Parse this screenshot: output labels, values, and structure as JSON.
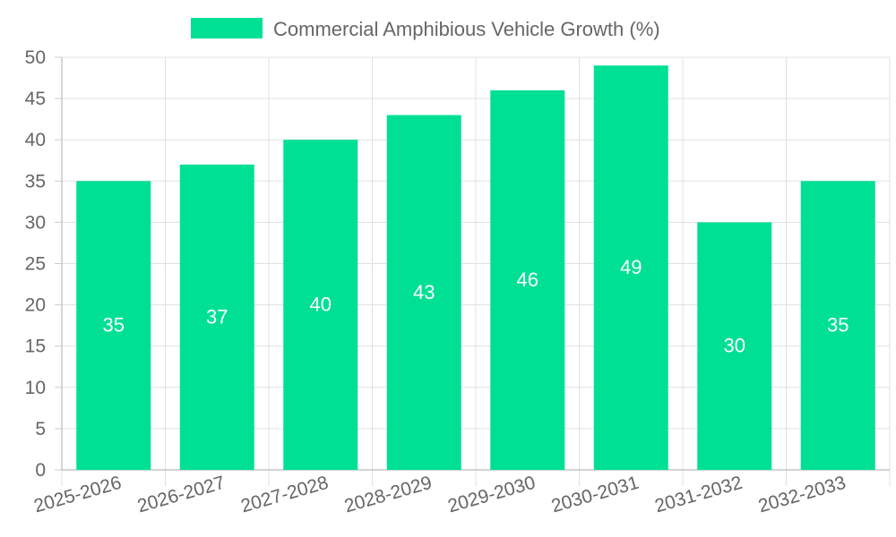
{
  "chart_data": {
    "type": "bar",
    "categories": [
      "2025-2026",
      "2026-2027",
      "2027-2028",
      "2028-2029",
      "2029-2030",
      "2030-2031",
      "2031-2032",
      "2032-2033"
    ],
    "series": [
      {
        "name": "Commercial Amphibious Vehicle Growth (%)",
        "values": [
          35,
          37,
          40,
          43,
          46,
          49,
          30,
          35
        ],
        "color": "#00e094"
      }
    ],
    "ylim": [
      0,
      50
    ],
    "yticks": [
      0,
      5,
      10,
      15,
      20,
      25,
      30,
      35,
      40,
      45,
      50
    ],
    "grid": true,
    "legend_position": "top-center",
    "xlabel": "",
    "ylabel": "",
    "title": ""
  }
}
